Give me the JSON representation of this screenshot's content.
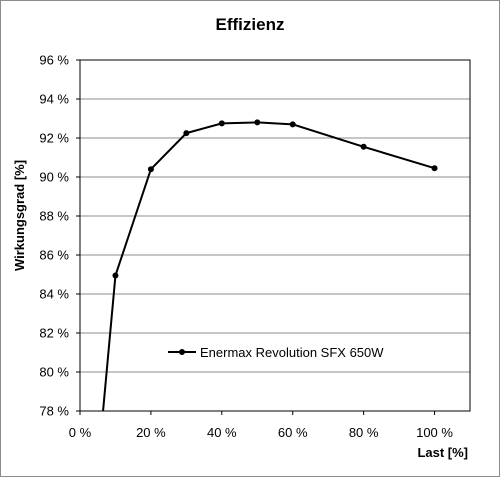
{
  "chart_data": {
    "type": "line",
    "title": "Effizienz",
    "xlabel": "Last [%]",
    "ylabel": "Wirkungsgrad [%]",
    "xlim": [
      0,
      110
    ],
    "ylim": [
      78,
      96
    ],
    "x_ticks": [
      0,
      20,
      40,
      60,
      80,
      100
    ],
    "x_tick_labels": [
      "0 %",
      "20 %",
      "40 %",
      "60 %",
      "80 %",
      "100 %"
    ],
    "y_ticks": [
      78,
      80,
      82,
      84,
      86,
      88,
      90,
      92,
      94,
      96
    ],
    "y_tick_labels": [
      "78 %",
      "80 %",
      "82 %",
      "84 %",
      "86 %",
      "88 %",
      "90 %",
      "92 %",
      "94 %",
      "96 %"
    ],
    "grid": "horizontal",
    "legend_position": "inside-left",
    "series": [
      {
        "name": "Enermax Revolution SFX 650W",
        "color": "#000000",
        "line_start": {
          "x": 6.5,
          "y": 78
        },
        "x": [
          10,
          20,
          30,
          40,
          50,
          60,
          80,
          100
        ],
        "y": [
          84.95,
          90.4,
          92.25,
          92.75,
          92.8,
          92.7,
          91.55,
          90.45
        ]
      }
    ]
  }
}
